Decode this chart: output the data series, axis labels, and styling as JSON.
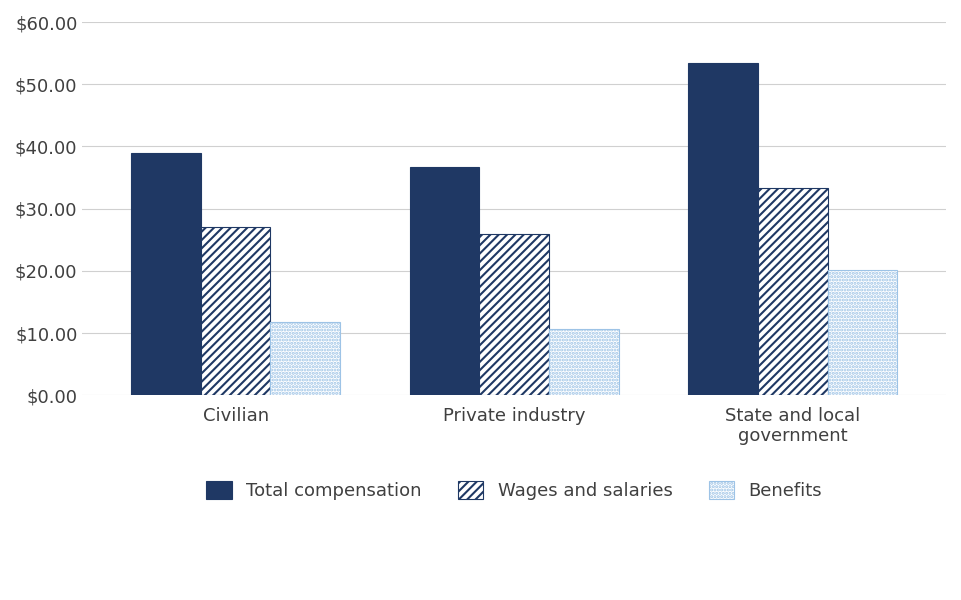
{
  "categories": [
    "Civilian",
    "Private industry",
    "State and local\ngovernment"
  ],
  "series": {
    "Total compensation": [
      38.91,
      36.64,
      53.39
    ],
    "Wages and salaries": [
      27.07,
      25.91,
      33.25
    ],
    "Benefits": [
      11.84,
      10.73,
      20.14
    ]
  },
  "colors": {
    "Total compensation": "#1f3864",
    "Wages and salaries": "#1f3864",
    "Benefits": "#9dc3e6"
  },
  "facecolors": {
    "Total compensation": "#1f3864",
    "Wages and salaries": "#ffffff",
    "Benefits": "#ffffff"
  },
  "hatch_patterns": {
    "Total compensation": "",
    "Wages and salaries": "////",
    "Benefits": "....."
  },
  "legend_labels": [
    "Total compensation",
    "Wages and salaries",
    "Benefits"
  ],
  "ylim": [
    0,
    60
  ],
  "yticks": [
    0,
    10,
    20,
    30,
    40,
    50,
    60
  ],
  "background_color": "#ffffff",
  "bar_width": 0.25,
  "grid_color": "#d0d0d0",
  "hatch_linewidth": 1.5
}
